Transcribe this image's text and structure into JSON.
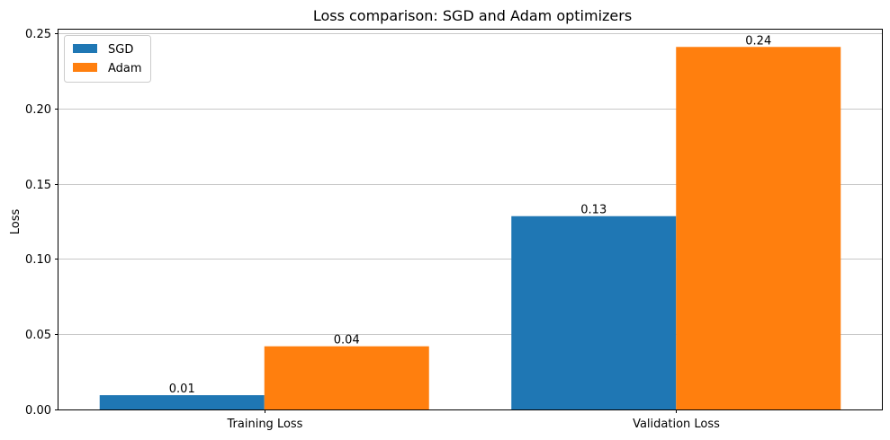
{
  "chart_data": {
    "type": "bar",
    "title": "Loss comparison: SGD and Adam optimizers",
    "xlabel": "",
    "ylabel": "Loss",
    "categories": [
      "Training Loss",
      "Validation Loss"
    ],
    "series": [
      {
        "name": "SGD",
        "values": [
          0.0095,
          0.1285
        ],
        "labels": [
          "0.01",
          "0.13"
        ],
        "color": "#1f77b4"
      },
      {
        "name": "Adam",
        "values": [
          0.042,
          0.241
        ],
        "labels": [
          "0.04",
          "0.24"
        ],
        "color": "#ff7f0e"
      }
    ],
    "ylim": [
      0,
      0.2525
    ],
    "yticks": [
      0.0,
      0.05,
      0.1,
      0.15,
      0.2,
      0.25
    ],
    "ytick_labels": [
      "0.00",
      "0.05",
      "0.10",
      "0.15",
      "0.20",
      "0.25"
    ],
    "grid": "y",
    "legend": "top-left"
  }
}
